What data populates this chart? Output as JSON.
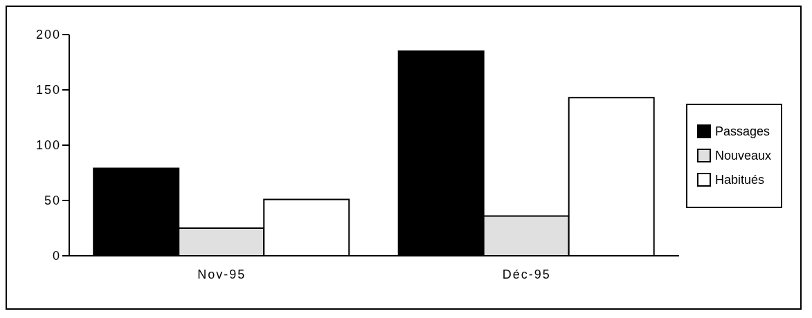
{
  "chart_data": {
    "type": "bar",
    "categories": [
      "Nov-95",
      "Déc-95"
    ],
    "series": [
      {
        "name": "Passages",
        "color": "#000000",
        "values": [
          79,
          185
        ]
      },
      {
        "name": "Nouveaux",
        "color": "#e0e0e0",
        "values": [
          25,
          36
        ]
      },
      {
        "name": "Habitués",
        "color": "#ffffff",
        "values": [
          51,
          143
        ]
      }
    ],
    "ylim": [
      0,
      200
    ],
    "yticks": [
      0,
      50,
      100,
      150,
      200
    ],
    "grid": false,
    "legend": "right"
  }
}
